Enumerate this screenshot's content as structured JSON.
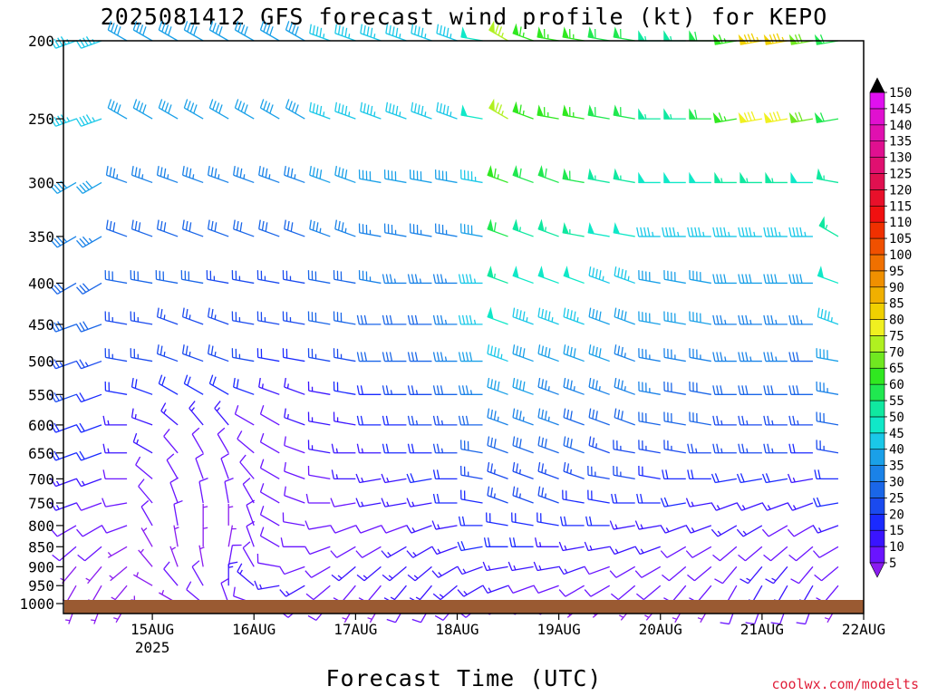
{
  "title": "2025081412 GFS forecast wind profile (kt) for KEPO",
  "xlabel": "Forecast Time (UTC)",
  "credit": "coolwx.com/modelts",
  "chart_data": {
    "type": "wind_barbs",
    "station": "KEPO",
    "model": "GFS",
    "init": "2025081412",
    "x_start_hours": -9,
    "x_end_hours": 180,
    "y_axis": {
      "label_units": "hPa",
      "scale": "log",
      "range": [
        1050,
        200
      ],
      "ticks": [
        200,
        250,
        300,
        350,
        400,
        450,
        500,
        550,
        600,
        650,
        700,
        750,
        800,
        850,
        900,
        950,
        1000
      ]
    },
    "x_ticks": [
      {
        "hours": 12,
        "label": "15AUG",
        "sub": "2025"
      },
      {
        "hours": 36,
        "label": "16AUG",
        "sub": ""
      },
      {
        "hours": 60,
        "label": "17AUG",
        "sub": ""
      },
      {
        "hours": 84,
        "label": "18AUG",
        "sub": ""
      },
      {
        "hours": 108,
        "label": "19AUG",
        "sub": ""
      },
      {
        "hours": 132,
        "label": "20AUG",
        "sub": ""
      },
      {
        "hours": 156,
        "label": "21AUG",
        "sub": ""
      },
      {
        "hours": 180,
        "label": "22AUG",
        "sub": ""
      }
    ],
    "colorbar": {
      "levels": [
        5,
        10,
        15,
        20,
        25,
        30,
        35,
        40,
        45,
        50,
        55,
        60,
        65,
        70,
        75,
        80,
        85,
        90,
        95,
        100,
        105,
        110,
        115,
        120,
        125,
        130,
        135,
        140,
        145,
        150
      ],
      "colors": [
        "#8a1cf0",
        "#6a14ff",
        "#3a14ff",
        "#1a2aff",
        "#1a4aef",
        "#1a66e8",
        "#1a82e8",
        "#1aa0e8",
        "#1ac8e8",
        "#10e8c8",
        "#10e8a0",
        "#20e850",
        "#30e820",
        "#70e820",
        "#b0f020",
        "#f0f020",
        "#f0d000",
        "#f0b000",
        "#f09000",
        "#f07000",
        "#f05000",
        "#f03000",
        "#f01010",
        "#e8102a",
        "#e01050",
        "#e01070",
        "#e01090",
        "#e010b0",
        "#e010d0",
        "#e010f0"
      ],
      "labels": [
        "5",
        "10",
        "15",
        "20",
        "25",
        "30",
        "35",
        "40",
        "45",
        "50",
        "55",
        "60",
        "65",
        "70",
        "75",
        "80",
        "85",
        "90",
        "95",
        "100",
        "105",
        "110",
        "115",
        "120",
        "125",
        "130",
        "135",
        "140",
        "145",
        "150"
      ]
    },
    "surface_color": "#9a5a32",
    "grid": false,
    "time_hours": [
      -6,
      0,
      6,
      12,
      18,
      24,
      30,
      36,
      42,
      48,
      54,
      60,
      66,
      72,
      78,
      84,
      90,
      96,
      102,
      108,
      114,
      120,
      126,
      132,
      138,
      144,
      150,
      156,
      162,
      168,
      174,
      180
    ],
    "levels_hpa": [
      200,
      250,
      300,
      350,
      400,
      450,
      500,
      550,
      600,
      650,
      700,
      750,
      800,
      850,
      900,
      950,
      1000
    ],
    "speed_knots_by_level": [
      [
        45,
        45,
        40,
        40,
        40,
        40,
        40,
        40,
        40,
        40,
        45,
        45,
        45,
        45,
        45,
        45,
        50,
        75,
        65,
        65,
        65,
        60,
        60,
        55,
        55,
        60,
        65,
        85,
        85,
        70,
        60,
        55
      ],
      [
        45,
        45,
        40,
        40,
        40,
        40,
        40,
        40,
        40,
        40,
        45,
        45,
        45,
        45,
        45,
        45,
        50,
        75,
        65,
        65,
        65,
        60,
        60,
        55,
        55,
        60,
        65,
        80,
        80,
        70,
        60,
        50
      ],
      [
        40,
        40,
        35,
        35,
        35,
        35,
        35,
        35,
        35,
        35,
        40,
        40,
        40,
        40,
        40,
        40,
        45,
        65,
        60,
        60,
        60,
        55,
        55,
        50,
        50,
        50,
        55,
        55,
        55,
        50,
        55,
        45
      ],
      [
        35,
        35,
        30,
        30,
        30,
        30,
        30,
        30,
        30,
        30,
        35,
        35,
        35,
        35,
        35,
        35,
        40,
        60,
        55,
        55,
        55,
        50,
        50,
        45,
        45,
        45,
        45,
        45,
        45,
        45,
        55,
        50
      ],
      [
        30,
        30,
        30,
        30,
        30,
        30,
        25,
        25,
        25,
        25,
        30,
        30,
        35,
        35,
        35,
        35,
        45,
        55,
        50,
        50,
        50,
        45,
        45,
        40,
        40,
        40,
        40,
        40,
        40,
        40,
        50,
        45
      ],
      [
        30,
        30,
        25,
        25,
        25,
        25,
        25,
        25,
        25,
        25,
        30,
        30,
        30,
        30,
        30,
        35,
        45,
        50,
        45,
        45,
        45,
        40,
        40,
        40,
        40,
        40,
        35,
        35,
        35,
        35,
        45,
        45
      ],
      [
        25,
        25,
        25,
        25,
        25,
        25,
        25,
        25,
        20,
        20,
        25,
        25,
        30,
        30,
        30,
        35,
        40,
        45,
        40,
        40,
        40,
        40,
        35,
        35,
        35,
        35,
        35,
        35,
        35,
        30,
        40,
        40
      ],
      [
        25,
        20,
        20,
        20,
        20,
        20,
        20,
        20,
        15,
        15,
        15,
        20,
        20,
        25,
        25,
        30,
        35,
        40,
        40,
        35,
        35,
        35,
        35,
        35,
        30,
        30,
        30,
        30,
        30,
        30,
        35,
        35
      ],
      [
        20,
        20,
        15,
        15,
        15,
        15,
        15,
        10,
        10,
        15,
        15,
        15,
        20,
        20,
        25,
        25,
        30,
        35,
        35,
        35,
        30,
        30,
        30,
        30,
        30,
        30,
        25,
        25,
        25,
        25,
        30,
        30
      ],
      [
        20,
        20,
        15,
        15,
        10,
        10,
        10,
        10,
        10,
        10,
        15,
        15,
        15,
        20,
        20,
        25,
        30,
        30,
        30,
        30,
        30,
        25,
        25,
        25,
        25,
        25,
        25,
        25,
        25,
        20,
        25,
        30
      ],
      [
        15,
        15,
        10,
        10,
        10,
        10,
        10,
        10,
        10,
        10,
        10,
        15,
        15,
        15,
        20,
        20,
        25,
        25,
        25,
        25,
        25,
        25,
        25,
        20,
        20,
        20,
        20,
        20,
        20,
        15,
        20,
        25
      ],
      [
        15,
        10,
        10,
        10,
        10,
        10,
        10,
        10,
        10,
        10,
        10,
        10,
        15,
        15,
        15,
        20,
        20,
        25,
        25,
        25,
        20,
        20,
        20,
        20,
        20,
        15,
        15,
        15,
        15,
        15,
        20,
        20
      ],
      [
        10,
        10,
        10,
        10,
        10,
        5,
        5,
        10,
        10,
        10,
        10,
        10,
        10,
        10,
        15,
        15,
        20,
        20,
        20,
        20,
        20,
        20,
        15,
        15,
        15,
        15,
        15,
        15,
        10,
        10,
        15,
        15
      ],
      [
        10,
        10,
        5,
        5,
        5,
        5,
        5,
        10,
        10,
        10,
        10,
        10,
        10,
        15,
        15,
        15,
        20,
        20,
        20,
        15,
        15,
        15,
        15,
        15,
        10,
        10,
        10,
        10,
        10,
        10,
        10,
        15
      ],
      [
        5,
        5,
        5,
        5,
        5,
        5,
        10,
        10,
        10,
        10,
        10,
        15,
        15,
        15,
        15,
        15,
        15,
        15,
        15,
        15,
        15,
        10,
        10,
        10,
        10,
        10,
        10,
        15,
        15,
        10,
        10,
        10
      ],
      [
        5,
        5,
        5,
        5,
        10,
        10,
        15,
        15,
        15,
        15,
        10,
        10,
        10,
        15,
        15,
        15,
        15,
        15,
        10,
        10,
        10,
        10,
        10,
        10,
        10,
        10,
        10,
        15,
        15,
        15,
        10,
        10
      ],
      [
        5,
        5,
        5,
        5,
        5,
        10,
        10,
        10,
        10,
        10,
        10,
        5,
        5,
        10,
        10,
        10,
        10,
        10,
        10,
        10,
        5,
        5,
        5,
        5,
        5,
        5,
        10,
        10,
        10,
        10,
        5,
        5
      ]
    ],
    "direction_deg_by_level": [
      [
        250,
        250,
        300,
        300,
        300,
        300,
        300,
        300,
        300,
        300,
        290,
        290,
        290,
        290,
        290,
        290,
        280,
        300,
        290,
        280,
        280,
        280,
        280,
        270,
        270,
        270,
        260,
        260,
        260,
        260,
        260,
        250
      ],
      [
        250,
        250,
        300,
        300,
        300,
        300,
        300,
        300,
        300,
        300,
        290,
        290,
        290,
        290,
        290,
        290,
        280,
        300,
        290,
        280,
        280,
        280,
        280,
        270,
        270,
        270,
        260,
        260,
        260,
        260,
        260,
        250
      ],
      [
        240,
        240,
        290,
        290,
        290,
        290,
        290,
        290,
        290,
        290,
        290,
        290,
        280,
        280,
        280,
        280,
        280,
        290,
        290,
        290,
        280,
        280,
        280,
        270,
        270,
        270,
        270,
        270,
        270,
        270,
        280,
        300
      ],
      [
        240,
        240,
        290,
        290,
        290,
        290,
        290,
        290,
        290,
        290,
        290,
        290,
        280,
        280,
        280,
        280,
        280,
        290,
        290,
        290,
        280,
        280,
        280,
        270,
        270,
        270,
        270,
        270,
        270,
        270,
        300,
        320
      ],
      [
        240,
        240,
        280,
        280,
        280,
        280,
        280,
        280,
        280,
        280,
        280,
        280,
        280,
        270,
        270,
        270,
        270,
        290,
        290,
        290,
        290,
        290,
        290,
        280,
        280,
        280,
        270,
        270,
        270,
        270,
        290,
        320
      ],
      [
        250,
        250,
        280,
        280,
        290,
        290,
        290,
        280,
        280,
        280,
        280,
        280,
        270,
        270,
        270,
        270,
        270,
        290,
        290,
        290,
        290,
        290,
        290,
        280,
        280,
        280,
        270,
        270,
        270,
        270,
        290,
        320
      ],
      [
        250,
        250,
        280,
        280,
        290,
        290,
        290,
        280,
        280,
        280,
        280,
        280,
        270,
        270,
        270,
        270,
        270,
        290,
        290,
        290,
        290,
        290,
        290,
        280,
        280,
        280,
        270,
        270,
        270,
        270,
        280,
        310
      ],
      [
        250,
        250,
        280,
        290,
        300,
        300,
        300,
        290,
        290,
        290,
        280,
        280,
        270,
        270,
        270,
        270,
        270,
        290,
        290,
        290,
        290,
        290,
        290,
        280,
        280,
        280,
        270,
        270,
        270,
        270,
        280,
        300
      ],
      [
        250,
        250,
        270,
        290,
        310,
        320,
        320,
        300,
        300,
        290,
        280,
        280,
        270,
        270,
        270,
        270,
        270,
        290,
        290,
        290,
        290,
        290,
        290,
        280,
        280,
        280,
        270,
        270,
        270,
        270,
        280,
        300
      ],
      [
        250,
        250,
        270,
        300,
        320,
        330,
        330,
        310,
        300,
        290,
        280,
        270,
        270,
        270,
        270,
        270,
        280,
        290,
        290,
        290,
        290,
        290,
        280,
        280,
        280,
        270,
        270,
        270,
        270,
        270,
        280,
        300
      ],
      [
        250,
        250,
        270,
        310,
        330,
        340,
        340,
        320,
        300,
        290,
        280,
        270,
        260,
        260,
        260,
        270,
        280,
        290,
        290,
        290,
        290,
        280,
        280,
        280,
        270,
        270,
        260,
        260,
        260,
        260,
        270,
        290
      ],
      [
        250,
        250,
        260,
        320,
        340,
        350,
        350,
        330,
        300,
        290,
        270,
        260,
        260,
        260,
        260,
        270,
        280,
        290,
        290,
        290,
        280,
        280,
        270,
        270,
        260,
        260,
        250,
        250,
        250,
        250,
        260,
        280
      ],
      [
        240,
        240,
        250,
        330,
        350,
        360,
        360,
        340,
        300,
        280,
        260,
        250,
        250,
        250,
        250,
        260,
        270,
        280,
        280,
        280,
        270,
        270,
        260,
        260,
        250,
        250,
        240,
        240,
        240,
        240,
        250,
        270
      ],
      [
        230,
        230,
        240,
        330,
        350,
        360,
        10,
        340,
        300,
        270,
        250,
        240,
        240,
        240,
        240,
        250,
        260,
        270,
        270,
        270,
        260,
        260,
        250,
        250,
        240,
        240,
        230,
        230,
        230,
        230,
        240,
        260
      ],
      [
        220,
        220,
        230,
        320,
        340,
        350,
        10,
        330,
        280,
        250,
        240,
        230,
        230,
        230,
        230,
        240,
        250,
        260,
        260,
        260,
        250,
        250,
        240,
        240,
        230,
        230,
        220,
        220,
        220,
        220,
        230,
        250
      ],
      [
        210,
        210,
        220,
        300,
        320,
        330,
        360,
        310,
        260,
        240,
        230,
        220,
        220,
        220,
        220,
        230,
        240,
        250,
        250,
        250,
        240,
        240,
        230,
        230,
        220,
        220,
        210,
        210,
        210,
        210,
        220,
        240
      ],
      [
        200,
        200,
        210,
        280,
        300,
        310,
        340,
        290,
        250,
        230,
        220,
        210,
        210,
        210,
        210,
        220,
        230,
        240,
        240,
        240,
        230,
        230,
        220,
        220,
        210,
        210,
        200,
        200,
        200,
        200,
        210,
        230
      ]
    ]
  }
}
